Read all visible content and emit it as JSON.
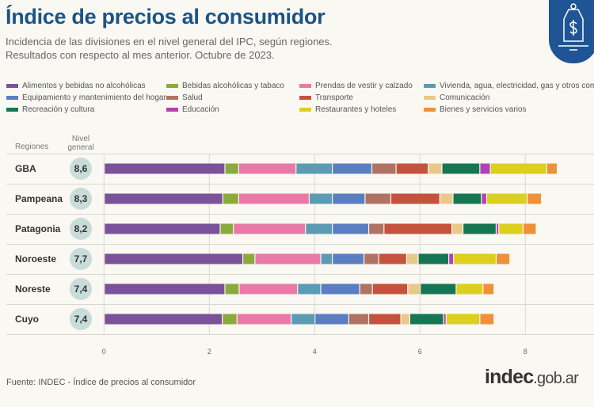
{
  "header": {
    "title": "Índice de precios al consumidor",
    "subtitle_1": "Incidencia de las divisiones en el nivel general del IPC, según regiones.",
    "subtitle_2": "Resultados con respecto al mes anterior. Octubre de 2023.",
    "badge_icon": "price-tag-dollar-icon"
  },
  "table_headers": {
    "regions": "Regiones",
    "level_1": "Nivel",
    "level_2": "general"
  },
  "chart_data": {
    "type": "bar",
    "orientation": "horizontal-stacked",
    "categories": [
      "GBA",
      "Pampeana",
      "Patagonia",
      "Noroeste",
      "Noreste",
      "Cuyo"
    ],
    "totals": [
      "8,6",
      "8,3",
      "8,2",
      "7,7",
      "7,4",
      "7,4"
    ],
    "xlim": [
      0,
      9
    ],
    "xticks": [
      "0",
      "2",
      "4",
      "6",
      "8"
    ],
    "grid": true,
    "legend_position": "top",
    "series": [
      {
        "name": "Alimentos y bebidas no alcohólicas",
        "color": "#7b5299",
        "values": [
          2.29,
          2.25,
          2.2,
          2.63,
          2.29,
          2.24
        ]
      },
      {
        "name": "Bebidas alcohólicas y tabaco",
        "color": "#8aab3c",
        "values": [
          0.26,
          0.3,
          0.25,
          0.23,
          0.27,
          0.28
        ]
      },
      {
        "name": "Prendas de vestir y calzado",
        "color": "#e97aa8",
        "values": [
          1.09,
          1.34,
          1.37,
          1.25,
          1.11,
          1.03
        ]
      },
      {
        "name": "Vivienda, agua, electricidad, gas y otros combustibles",
        "color": "#5b9bb4",
        "values": [
          0.69,
          0.44,
          0.51,
          0.22,
          0.44,
          0.45
        ]
      },
      {
        "name": "Equipamiento y mantenimiento del hogar",
        "color": "#5a7ec2",
        "values": [
          0.75,
          0.62,
          0.69,
          0.6,
          0.74,
          0.64
        ]
      },
      {
        "name": "Salud",
        "color": "#b07363",
        "values": [
          0.46,
          0.49,
          0.29,
          0.28,
          0.24,
          0.38
        ]
      },
      {
        "name": "Transporte",
        "color": "#c4533e",
        "values": [
          0.61,
          0.93,
          1.29,
          0.53,
          0.67,
          0.61
        ]
      },
      {
        "name": "Comunicación",
        "color": "#e8c98a",
        "values": [
          0.26,
          0.25,
          0.21,
          0.22,
          0.24,
          0.17
        ]
      },
      {
        "name": "Recreación y cultura",
        "color": "#167654",
        "values": [
          0.72,
          0.54,
          0.63,
          0.58,
          0.68,
          0.64
        ]
      },
      {
        "name": "Educación",
        "color": "#b540b5",
        "values": [
          0.2,
          0.1,
          0.05,
          0.09,
          0.0,
          0.05
        ]
      },
      {
        "name": "Restaurantes y hoteles",
        "color": "#dccf1e",
        "values": [
          1.07,
          0.77,
          0.46,
          0.81,
          0.51,
          0.64
        ]
      },
      {
        "name": "Bienes y servicios varios",
        "color": "#ee9138",
        "values": [
          0.2,
          0.27,
          0.25,
          0.26,
          0.21,
          0.27
        ]
      }
    ]
  },
  "footer": {
    "source": "Fuente: INDEC - Índice de precios al consumidor",
    "logo_main": "indec",
    "logo_domain": ".gob.ar"
  }
}
